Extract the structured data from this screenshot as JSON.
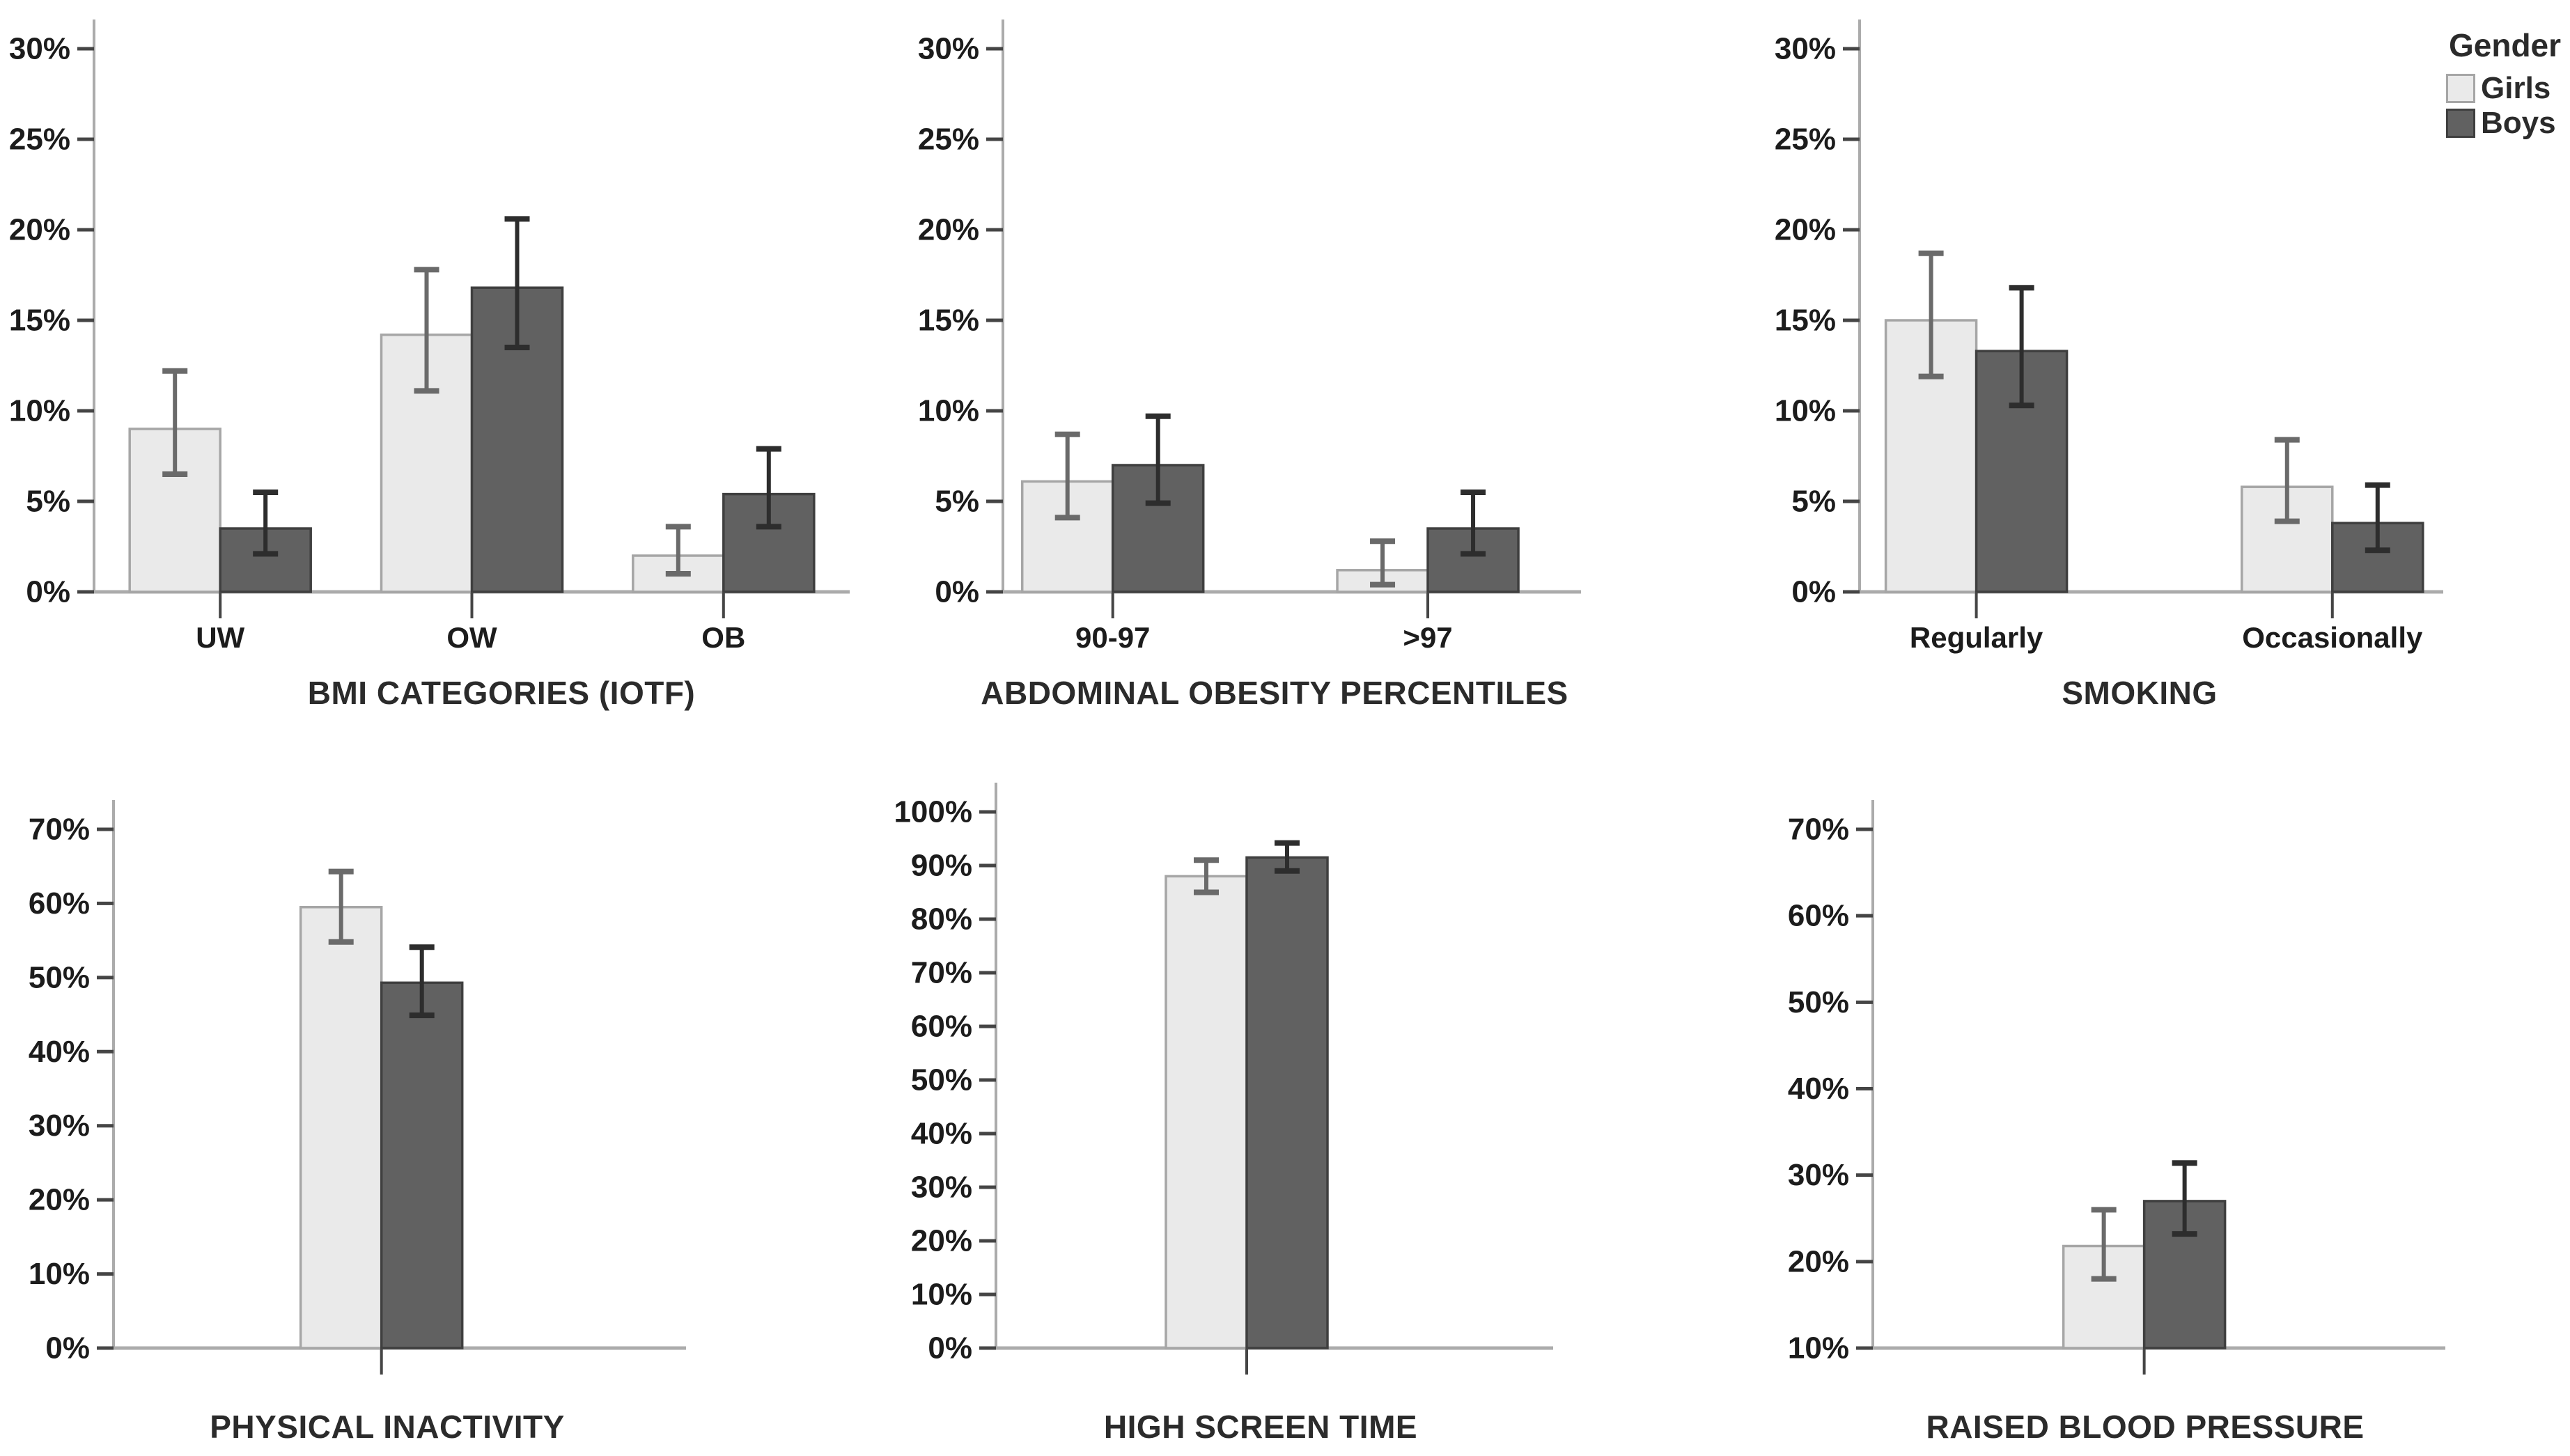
{
  "figure": {
    "background": "#ffffff",
    "y_axis_format": "percent"
  },
  "legend": {
    "title": "Gender",
    "position": "top-right",
    "items": [
      {
        "label": "Girls",
        "fill": "#eaeaea",
        "stroke": "#a6a6a6",
        "error_color": "#6a6a6a"
      },
      {
        "label": "Boys",
        "fill": "#616161",
        "stroke": "#3f3f3f",
        "error_color": "#2d2d2d"
      }
    ]
  },
  "chart_data": [
    {
      "type": "bar",
      "title": "BMI CATEGORIES (IOTF)",
      "ylim": [
        0,
        30
      ],
      "ytick_step": 5,
      "tick_suffix": "%",
      "grid": false,
      "categories": [
        "UW",
        "OW",
        "OB"
      ],
      "series": [
        {
          "name": "Girls",
          "values": [
            9.0,
            14.2,
            2.0
          ],
          "ci_low": [
            6.5,
            11.1,
            1.0
          ],
          "ci_high": [
            12.2,
            17.8,
            3.6
          ]
        },
        {
          "name": "Boys",
          "values": [
            3.5,
            16.8,
            5.4
          ],
          "ci_low": [
            2.1,
            13.5,
            3.6
          ],
          "ci_high": [
            5.5,
            20.6,
            7.9
          ]
        }
      ]
    },
    {
      "type": "bar",
      "title": "ABDOMINAL OBESITY PERCENTILES",
      "ylim": [
        0,
        30
      ],
      "ytick_step": 5,
      "tick_suffix": "%",
      "grid": false,
      "categories": [
        "90-97",
        ">97"
      ],
      "series": [
        {
          "name": "Girls",
          "values": [
            6.1,
            1.2
          ],
          "ci_low": [
            4.1,
            0.4
          ],
          "ci_high": [
            8.7,
            2.8
          ]
        },
        {
          "name": "Boys",
          "values": [
            7.0,
            3.5
          ],
          "ci_low": [
            4.9,
            2.1
          ],
          "ci_high": [
            9.7,
            5.5
          ]
        }
      ]
    },
    {
      "type": "bar",
      "title": "SMOKING",
      "ylim": [
        0,
        30
      ],
      "ytick_step": 5,
      "tick_suffix": "%",
      "grid": false,
      "categories": [
        "Regularly",
        "Occasionally"
      ],
      "series": [
        {
          "name": "Girls",
          "values": [
            15.0,
            5.8
          ],
          "ci_low": [
            11.9,
            3.9
          ],
          "ci_high": [
            18.7,
            8.4
          ]
        },
        {
          "name": "Boys",
          "values": [
            13.3,
            3.8
          ],
          "ci_low": [
            10.3,
            2.3
          ],
          "ci_high": [
            16.8,
            5.9
          ]
        }
      ]
    },
    {
      "type": "bar",
      "title": "PHYSICAL INACTIVITY",
      "ylim": [
        0,
        70
      ],
      "ytick_step": 10,
      "tick_suffix": "%",
      "grid": false,
      "categories": [
        ""
      ],
      "series": [
        {
          "name": "Girls",
          "values": [
            59.5
          ],
          "ci_low": [
            54.8
          ],
          "ci_high": [
            64.3
          ]
        },
        {
          "name": "Boys",
          "values": [
            49.3
          ],
          "ci_low": [
            44.9
          ],
          "ci_high": [
            54.1
          ]
        }
      ]
    },
    {
      "type": "bar",
      "title": "HIGH SCREEN TIME",
      "ylim": [
        0,
        100
      ],
      "ytick_step": 10,
      "tick_suffix": "%",
      "grid": false,
      "categories": [
        ""
      ],
      "series": [
        {
          "name": "Girls",
          "values": [
            88.0
          ],
          "ci_low": [
            85.0
          ],
          "ci_high": [
            91.0
          ]
        },
        {
          "name": "Boys",
          "values": [
            91.5
          ],
          "ci_low": [
            89.0
          ],
          "ci_high": [
            94.2
          ]
        }
      ]
    },
    {
      "type": "bar",
      "title": "RAISED BLOOD PRESSURE",
      "ylim": [
        10,
        70
      ],
      "ytick_step": 10,
      "tick_suffix": "%",
      "grid": false,
      "categories": [
        ""
      ],
      "series": [
        {
          "name": "Girls",
          "values": [
            21.8
          ],
          "ci_low": [
            18.0
          ],
          "ci_high": [
            26.0
          ]
        },
        {
          "name": "Boys",
          "values": [
            27.0
          ],
          "ci_low": [
            23.2
          ],
          "ci_high": [
            31.4
          ]
        }
      ]
    }
  ]
}
